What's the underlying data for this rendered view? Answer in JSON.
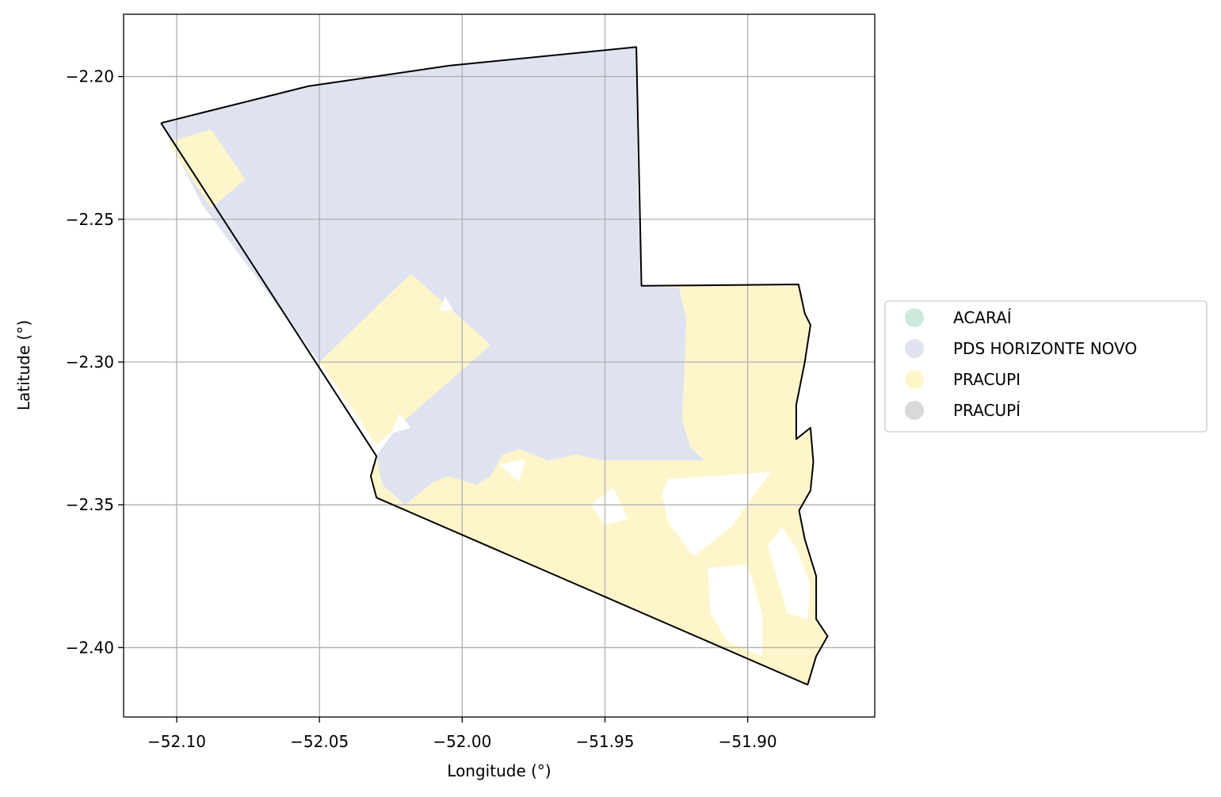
{
  "chart_data": {
    "type": "map",
    "xlabel": "Longitude (°)",
    "ylabel": "Latitude (°)",
    "xlim": [
      -52.1186,
      -51.8555
    ],
    "ylim": [
      -2.4243,
      -2.1782
    ],
    "grid": true,
    "x_ticks": [
      {
        "value": -52.1,
        "label": "−52.10"
      },
      {
        "value": -52.05,
        "label": "−52.05"
      },
      {
        "value": -52.0,
        "label": "−52.00"
      },
      {
        "value": -51.95,
        "label": "−51.95"
      },
      {
        "value": -51.9,
        "label": "−51.90"
      }
    ],
    "y_ticks": [
      {
        "value": -2.2,
        "label": "−2.20"
      },
      {
        "value": -2.25,
        "label": "−2.25"
      },
      {
        "value": -2.3,
        "label": "−2.30"
      },
      {
        "value": -2.35,
        "label": "−2.35"
      },
      {
        "value": -2.4,
        "label": "−2.40"
      }
    ],
    "legend_position": "right",
    "categories": [
      {
        "name": "ACARAÍ",
        "color": "#cce9dc"
      },
      {
        "name": "PDS HORIZONTE NOVO",
        "color": "#dfe3f0"
      },
      {
        "name": "PRACUPI",
        "color": "#fff5cb"
      },
      {
        "name": "PRACUPÍ",
        "color": "#d9d9d9"
      }
    ],
    "boundary": [
      [
        -52.1055,
        -2.2163
      ],
      [
        -52.0539,
        -2.2034
      ],
      [
        -52.0046,
        -2.1962
      ],
      [
        -51.939,
        -2.1897
      ],
      [
        -51.9372,
        -2.2733
      ],
      [
        -51.8822,
        -2.2728
      ],
      [
        -51.88,
        -2.283
      ],
      [
        -51.878,
        -2.287
      ],
      [
        -51.88,
        -2.3
      ],
      [
        -51.883,
        -2.315
      ],
      [
        -51.883,
        -2.327
      ],
      [
        -51.878,
        -2.323
      ],
      [
        -51.877,
        -2.335
      ],
      [
        -51.878,
        -2.345
      ],
      [
        -51.882,
        -2.352
      ],
      [
        -51.88,
        -2.362
      ],
      [
        -51.876,
        -2.375
      ],
      [
        -51.876,
        -2.39
      ],
      [
        -51.872,
        -2.396
      ],
      [
        -51.876,
        -2.403
      ],
      [
        -51.879,
        -2.413
      ],
      [
        -52.03,
        -2.3475
      ],
      [
        -52.032,
        -2.34
      ],
      [
        -52.03,
        -2.333
      ],
      [
        -52.1055,
        -2.2163
      ]
    ],
    "regions": [
      {
        "name": "PDS HORIZONTE NOVO",
        "color": "#dfe3f0",
        "polygon": [
          [
            -52.1055,
            -2.2163
          ],
          [
            -52.0539,
            -2.2034
          ],
          [
            -52.0046,
            -2.1962
          ],
          [
            -51.939,
            -2.1897
          ],
          [
            -51.9385,
            -2.24
          ],
          [
            -51.9372,
            -2.2733
          ],
          [
            -51.924,
            -2.274
          ],
          [
            -51.9215,
            -2.285
          ],
          [
            -51.922,
            -2.3
          ],
          [
            -51.923,
            -2.32
          ],
          [
            -51.92,
            -2.33
          ],
          [
            -51.915,
            -2.3345
          ],
          [
            -51.951,
            -2.3345
          ],
          [
            -51.96,
            -2.3325
          ],
          [
            -51.97,
            -2.3345
          ],
          [
            -51.98,
            -2.3305
          ],
          [
            -51.986,
            -2.3325
          ],
          [
            -51.99,
            -2.34
          ],
          [
            -51.995,
            -2.343
          ],
          [
            -52.005,
            -2.34
          ],
          [
            -52.01,
            -2.342
          ],
          [
            -52.02,
            -2.35
          ],
          [
            -52.028,
            -2.343
          ],
          [
            -52.03,
            -2.333
          ],
          [
            -52.028,
            -2.33
          ],
          [
            -52.014,
            -2.311
          ],
          [
            -52.05,
            -2.3
          ],
          [
            -52.091,
            -2.245
          ],
          [
            -52.1055,
            -2.2163
          ]
        ]
      },
      {
        "name": "PRACUPI",
        "color": "#fff5cb",
        "polygon": [
          [
            -52.103,
            -2.223
          ],
          [
            -52.088,
            -2.2185
          ],
          [
            -52.076,
            -2.236
          ],
          [
            -52.088,
            -2.246
          ],
          [
            -52.103,
            -2.223
          ]
        ]
      },
      {
        "name": "PRACUPI",
        "color": "#fff5cb",
        "polygon": [
          [
            -52.05,
            -2.3
          ],
          [
            -52.018,
            -2.269
          ],
          [
            -51.99,
            -2.294
          ],
          [
            -52.03,
            -2.329
          ],
          [
            -52.05,
            -2.3
          ]
        ]
      },
      {
        "name": "PRACUPI",
        "color": "#fff5cb",
        "polygon": [
          [
            -52.03,
            -2.333
          ],
          [
            -52.028,
            -2.343
          ],
          [
            -52.02,
            -2.35
          ],
          [
            -52.01,
            -2.342
          ],
          [
            -52.005,
            -2.34
          ],
          [
            -51.995,
            -2.343
          ],
          [
            -51.99,
            -2.34
          ],
          [
            -51.986,
            -2.3325
          ],
          [
            -51.98,
            -2.3305
          ],
          [
            -51.97,
            -2.3345
          ],
          [
            -51.96,
            -2.3325
          ],
          [
            -51.951,
            -2.3345
          ],
          [
            -51.915,
            -2.3345
          ],
          [
            -51.92,
            -2.33
          ],
          [
            -51.923,
            -2.32
          ],
          [
            -51.922,
            -2.3
          ],
          [
            -51.9215,
            -2.285
          ],
          [
            -51.924,
            -2.274
          ],
          [
            -51.9372,
            -2.2733
          ],
          [
            -51.8822,
            -2.2728
          ],
          [
            -51.88,
            -2.283
          ],
          [
            -51.878,
            -2.287
          ],
          [
            -51.88,
            -2.3
          ],
          [
            -51.883,
            -2.315
          ],
          [
            -51.883,
            -2.327
          ],
          [
            -51.878,
            -2.323
          ],
          [
            -51.877,
            -2.335
          ],
          [
            -51.878,
            -2.345
          ],
          [
            -51.882,
            -2.352
          ],
          [
            -51.88,
            -2.362
          ],
          [
            -51.876,
            -2.375
          ],
          [
            -51.876,
            -2.39
          ],
          [
            -51.872,
            -2.396
          ],
          [
            -51.876,
            -2.403
          ],
          [
            -51.879,
            -2.413
          ],
          [
            -52.03,
            -2.3475
          ],
          [
            -52.032,
            -2.34
          ],
          [
            -52.03,
            -2.333
          ]
        ]
      }
    ],
    "gaps": [
      [
        [
          -51.928,
          -2.341
        ],
        [
          -51.892,
          -2.3385
        ],
        [
          -51.906,
          -2.358
        ],
        [
          -51.919,
          -2.368
        ],
        [
          -51.928,
          -2.356
        ],
        [
          -51.93,
          -2.346
        ],
        [
          -51.928,
          -2.341
        ]
      ],
      [
        [
          -51.914,
          -2.372
        ],
        [
          -51.9,
          -2.371
        ],
        [
          -51.895,
          -2.388
        ],
        [
          -51.895,
          -2.403
        ],
        [
          -51.907,
          -2.398
        ],
        [
          -51.913,
          -2.388
        ],
        [
          -51.914,
          -2.372
        ]
      ],
      [
        [
          -51.888,
          -2.358
        ],
        [
          -51.883,
          -2.365
        ],
        [
          -51.878,
          -2.378
        ],
        [
          -51.879,
          -2.39
        ],
        [
          -51.886,
          -2.388
        ],
        [
          -51.89,
          -2.375
        ],
        [
          -51.893,
          -2.364
        ],
        [
          -51.888,
          -2.358
        ]
      ],
      [
        [
          -51.955,
          -2.35
        ],
        [
          -51.947,
          -2.344
        ],
        [
          -51.942,
          -2.355
        ],
        [
          -51.95,
          -2.357
        ],
        [
          -51.955,
          -2.35
        ]
      ],
      [
        [
          -51.987,
          -2.336
        ],
        [
          -51.978,
          -2.334
        ],
        [
          -51.98,
          -2.342
        ],
        [
          -51.987,
          -2.336
        ]
      ],
      [
        [
          -52.022,
          -2.318
        ],
        [
          -52.018,
          -2.323
        ],
        [
          -52.025,
          -2.325
        ],
        [
          -52.022,
          -2.318
        ]
      ],
      [
        [
          -52.006,
          -2.277
        ],
        [
          -52.003,
          -2.282
        ],
        [
          -52.008,
          -2.282
        ],
        [
          -52.006,
          -2.277
        ]
      ]
    ]
  }
}
